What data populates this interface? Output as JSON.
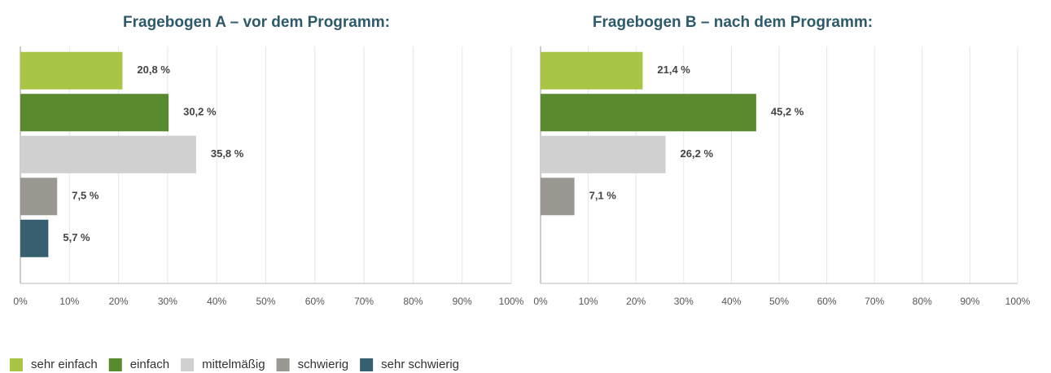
{
  "chart_data": [
    {
      "type": "bar",
      "title": "Fragebogen A – vor dem Programm:",
      "values": [
        20.8,
        30.2,
        35.8,
        7.5,
        5.7
      ],
      "value_labels": [
        "20,8 %",
        "30,2 %",
        "35,8 %",
        "7,5 %",
        "5,7 %"
      ],
      "xlim": [
        0,
        100
      ],
      "xticks": [
        {
          "value": 0,
          "label": "0%"
        },
        {
          "value": 10,
          "label": "10%"
        },
        {
          "value": 20,
          "label": "20%"
        },
        {
          "value": 30,
          "label": "30%"
        },
        {
          "value": 40,
          "label": "40%"
        },
        {
          "value": 50,
          "label": "50%"
        },
        {
          "value": 60,
          "label": "60%"
        },
        {
          "value": 70,
          "label": "70%"
        },
        {
          "value": 80,
          "label": "80%"
        },
        {
          "value": 90,
          "label": "90%"
        },
        {
          "value": 100,
          "label": "100%"
        }
      ],
      "grid": true
    },
    {
      "type": "bar",
      "title": "Fragebogen B – nach dem Programm:",
      "values": [
        21.4,
        45.2,
        26.2,
        7.1,
        null
      ],
      "value_labels": [
        "21,4 %",
        "45,2 %",
        "26,2 %",
        "7,1 %",
        null
      ],
      "xlim": [
        0,
        100
      ],
      "xticks": [
        {
          "value": 0,
          "label": "0%"
        },
        {
          "value": 10,
          "label": "10%"
        },
        {
          "value": 20,
          "label": "20%"
        },
        {
          "value": 30,
          "label": "30%"
        },
        {
          "value": 40,
          "label": "40%"
        },
        {
          "value": 50,
          "label": "50%"
        },
        {
          "value": 60,
          "label": "60%"
        },
        {
          "value": 70,
          "label": "70%"
        },
        {
          "value": 80,
          "label": "80%"
        },
        {
          "value": 90,
          "label": "90%"
        },
        {
          "value": 100,
          "label": "100%"
        }
      ],
      "grid": true
    }
  ],
  "legend": {
    "labels": [
      "sehr einfach",
      "einfach",
      "mittelmäßig",
      "schwierig",
      "sehr schwierig"
    ],
    "colors": [
      "#a8c545",
      "#5a8a2e",
      "#d0d0d0",
      "#9a9890",
      "#36606f"
    ]
  }
}
